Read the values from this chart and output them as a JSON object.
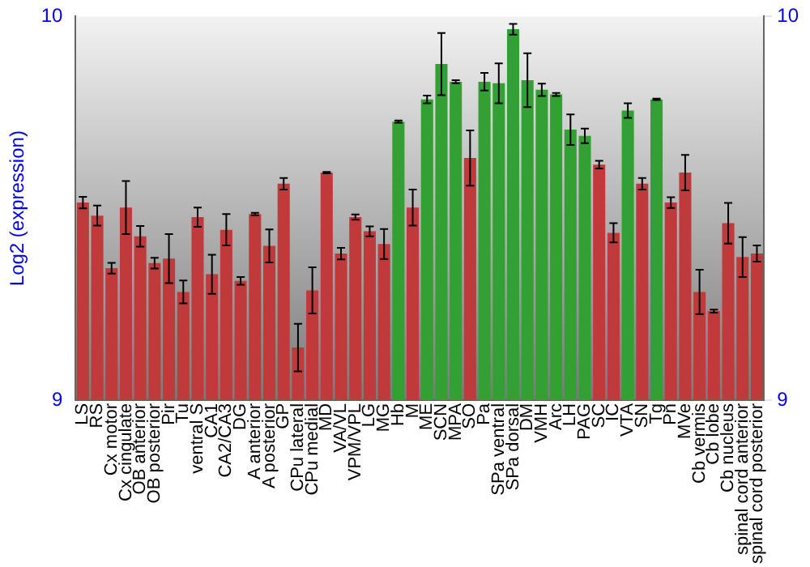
{
  "chart_data": {
    "type": "bar",
    "ylabel": "Log2 (expression)",
    "categories": [
      "LS",
      "RS",
      "Cx motor",
      "Cx cingulate",
      "OB anterior",
      "OB posterior",
      "Pir",
      "Tu",
      "ventral S",
      "CA1",
      "CA2/CA3",
      "DG",
      "A anterior",
      "A posterior",
      "GP",
      "CPu lateral",
      "CPu medial",
      "MD",
      "VA/VL",
      "VPM/VPL",
      "LG",
      "MG",
      "Hb",
      "M",
      "ME",
      "SCN",
      "MPA",
      "SO",
      "Pa",
      "SPa ventral",
      "SPa dorsal",
      "DM",
      "VMH",
      "Arc",
      "LH",
      "PAG",
      "SC",
      "IC",
      "VTA",
      "SN",
      "Tg",
      "Pn",
      "MVe",
      "Cb vermis",
      "Cb lobe",
      "Cb nucleus",
      "spinal cord anterior",
      "spinal cord posterior"
    ],
    "values": [
      9.515,
      9.481,
      9.344,
      9.502,
      9.427,
      9.357,
      9.369,
      9.282,
      9.477,
      9.328,
      9.444,
      9.311,
      9.485,
      9.402,
      9.564,
      9.137,
      9.286,
      9.593,
      9.382,
      9.477,
      9.44,
      9.407,
      9.726,
      9.502,
      9.784,
      9.876,
      9.83,
      9.631,
      9.83,
      9.826,
      9.967,
      9.834,
      9.809,
      9.797,
      9.705,
      9.689,
      9.614,
      9.436,
      9.755,
      9.564,
      9.784,
      9.515,
      9.593,
      9.282,
      9.232,
      9.461,
      9.373,
      9.382
    ],
    "errors": [
      0.015,
      0.026,
      0.014,
      0.069,
      0.027,
      0.014,
      0.064,
      0.03,
      0.025,
      0.051,
      0.041,
      0.01,
      0.003,
      0.043,
      0.015,
      0.062,
      0.06,
      0.002,
      0.015,
      0.007,
      0.013,
      0.039,
      0.003,
      0.047,
      0.01,
      0.081,
      0.004,
      0.072,
      0.023,
      0.052,
      0.014,
      0.07,
      0.016,
      0.004,
      0.04,
      0.019,
      0.01,
      0.025,
      0.019,
      0.015,
      0.002,
      0.014,
      0.046,
      0.058,
      0.004,
      0.053,
      0.052,
      0.021
    ],
    "colors": [
      "#c0393b",
      "#c0393b",
      "#c0393b",
      "#c0393b",
      "#c0393b",
      "#c0393b",
      "#c0393b",
      "#c0393b",
      "#c0393b",
      "#c0393b",
      "#c0393b",
      "#c0393b",
      "#c0393b",
      "#c0393b",
      "#c0393b",
      "#c0393b",
      "#c0393b",
      "#c0393b",
      "#c0393b",
      "#c0393b",
      "#c0393b",
      "#c0393b",
      "#33a033",
      "#c0393b",
      "#33a033",
      "#33a033",
      "#33a033",
      "#c0393b",
      "#33a033",
      "#33a033",
      "#33a033",
      "#33a033",
      "#33a033",
      "#33a033",
      "#33a033",
      "#33a033",
      "#c0393b",
      "#c0393b",
      "#33a033",
      "#c0393b",
      "#33a033",
      "#c0393b",
      "#c0393b",
      "#c0393b",
      "#c0393b",
      "#c0393b",
      "#c0393b",
      "#c0393b"
    ],
    "ylim": [
      9,
      10
    ],
    "yticks": [
      9,
      10
    ],
    "y2lim": [
      9,
      10
    ],
    "y2ticks": [
      9,
      10
    ],
    "grid": false,
    "legend": false
  }
}
